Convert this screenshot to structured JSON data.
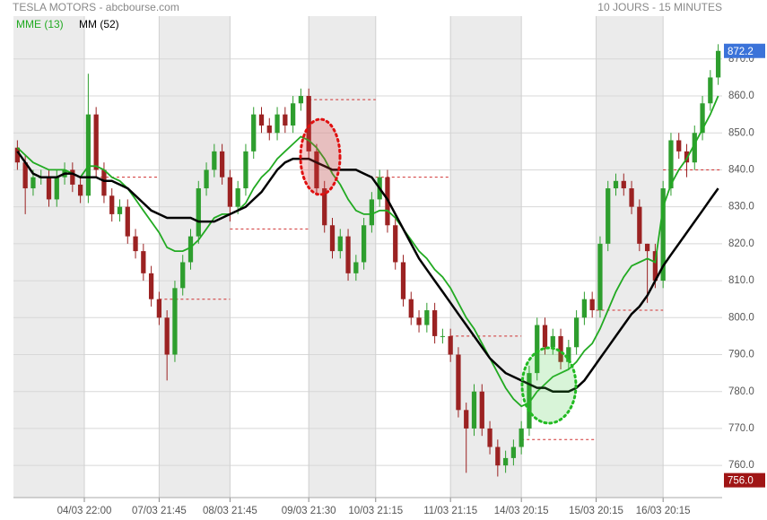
{
  "chart_data": {
    "type": "candlestick",
    "title": "TESLA MOTORS - abcbourse.com",
    "subtitle": "10 JOURS - 15 MINUTES",
    "up_color": "#2e9e2e",
    "down_color": "#9b2222",
    "open": [
      846,
      842,
      835,
      838,
      838,
      832,
      838,
      840,
      836,
      833,
      855,
      840,
      833,
      828,
      830,
      822,
      818,
      812,
      805,
      800,
      790,
      808,
      815,
      822,
      835,
      840,
      845,
      838,
      830,
      835,
      845,
      855,
      852,
      850,
      855,
      852,
      858,
      860,
      845,
      835,
      825,
      818,
      822,
      812,
      815,
      825,
      832,
      838,
      825,
      815,
      805,
      800,
      798,
      802,
      795,
      795,
      790,
      775,
      770,
      780,
      770,
      765,
      760,
      762,
      765,
      770,
      785,
      798,
      792,
      795,
      788,
      792,
      800,
      805,
      802,
      820,
      835,
      837,
      835,
      830,
      820,
      818,
      810,
      835,
      848,
      845,
      842,
      850,
      858,
      865
    ],
    "high": [
      848,
      844,
      840,
      840,
      840,
      840,
      842,
      842,
      838,
      866,
      857,
      842,
      835,
      832,
      832,
      824,
      820,
      814,
      807,
      802,
      810,
      817,
      824,
      837,
      842,
      847,
      847,
      840,
      837,
      847,
      857,
      857,
      854,
      857,
      857,
      860,
      862,
      862,
      847,
      837,
      827,
      824,
      824,
      817,
      827,
      834,
      840,
      840,
      827,
      817,
      807,
      802,
      804,
      804,
      797,
      797,
      792,
      777,
      782,
      782,
      772,
      767,
      764,
      767,
      772,
      787,
      800,
      800,
      797,
      797,
      794,
      802,
      807,
      807,
      822,
      837,
      839,
      839,
      837,
      832,
      820,
      820,
      837,
      850,
      850,
      847,
      852,
      860,
      867,
      874
    ],
    "low": [
      840,
      828,
      833,
      836,
      830,
      830,
      836,
      834,
      831,
      831,
      838,
      831,
      826,
      826,
      820,
      816,
      810,
      803,
      798,
      783,
      788,
      806,
      813,
      820,
      833,
      838,
      836,
      826,
      828,
      833,
      843,
      850,
      848,
      848,
      850,
      850,
      856,
      843,
      833,
      823,
      816,
      816,
      810,
      810,
      813,
      823,
      830,
      823,
      813,
      803,
      798,
      796,
      796,
      793,
      793,
      788,
      773,
      758,
      768,
      768,
      763,
      757,
      758,
      760,
      763,
      768,
      783,
      790,
      790,
      786,
      786,
      790,
      798,
      800,
      800,
      818,
      833,
      833,
      828,
      818,
      804,
      808,
      808,
      833,
      843,
      838,
      840,
      848,
      856,
      863
    ],
    "close": [
      842,
      835,
      838,
      838,
      832,
      838,
      840,
      836,
      833,
      855,
      840,
      833,
      828,
      830,
      822,
      818,
      812,
      805,
      800,
      790,
      808,
      815,
      822,
      835,
      840,
      845,
      838,
      830,
      835,
      845,
      855,
      852,
      850,
      855,
      852,
      858,
      860,
      845,
      835,
      825,
      818,
      822,
      812,
      815,
      825,
      832,
      838,
      825,
      815,
      805,
      800,
      798,
      802,
      795,
      795,
      790,
      775,
      770,
      780,
      770,
      765,
      760,
      762,
      765,
      770,
      785,
      798,
      792,
      795,
      788,
      792,
      800,
      805,
      802,
      820,
      835,
      837,
      835,
      830,
      820,
      818,
      810,
      835,
      848,
      845,
      842,
      850,
      858,
      865,
      872.2
    ],
    "series": [
      {
        "name": "MME (13)",
        "color": "#22aa22",
        "values": [
          846,
          844,
          842,
          841,
          840,
          840,
          840,
          839,
          838,
          841,
          841,
          840,
          838,
          837,
          835,
          832,
          829,
          826,
          823,
          819,
          818,
          818,
          819,
          821,
          824,
          827,
          828,
          828,
          829,
          831,
          835,
          838,
          840,
          843,
          845,
          847,
          849,
          848,
          846,
          843,
          839,
          836,
          832,
          829,
          828,
          828,
          829,
          829,
          827,
          824,
          821,
          818,
          816,
          813,
          811,
          808,
          804,
          800,
          797,
          793,
          789,
          785,
          781,
          778,
          776,
          777,
          780,
          782,
          784,
          785,
          786,
          788,
          791,
          793,
          797,
          802,
          807,
          811,
          814,
          815,
          816,
          815,
          830,
          836,
          840,
          843,
          847,
          851,
          855,
          860
        ]
      },
      {
        "name": "MM (52)",
        "color": "#000000",
        "values": [
          845,
          842,
          839,
          838,
          838,
          838,
          839,
          839,
          838,
          838,
          838,
          837,
          837,
          836,
          835,
          833,
          831,
          829,
          828,
          827,
          827,
          827,
          827,
          826,
          826,
          826,
          827,
          828,
          829,
          830,
          832,
          834,
          837,
          840,
          842,
          843,
          843,
          843,
          842,
          841,
          840,
          840,
          840,
          840,
          839,
          838,
          835,
          832,
          828,
          824,
          820,
          816,
          813,
          810,
          807,
          804,
          801,
          798,
          795,
          792,
          789,
          787,
          785,
          784,
          783,
          782,
          781,
          781,
          780,
          780,
          780,
          781,
          783,
          786,
          789,
          792,
          795,
          798,
          801,
          803,
          806,
          810,
          814,
          817,
          820,
          823,
          826,
          829,
          832,
          835
        ]
      }
    ],
    "reference_lines": [
      838,
      805,
      824,
      859,
      838,
      795,
      767,
      802,
      840
    ],
    "price_tags": [
      {
        "value": 872.2,
        "label": "872.2",
        "color": "#3b73d9"
      },
      {
        "value": 756.0,
        "label": "756.0",
        "color": "#a01515"
      }
    ],
    "xlim": [
      0,
      90
    ],
    "xticks": [
      {
        "value": 9,
        "label": "04/03 22:00"
      },
      {
        "value": 18.5,
        "label": "07/03 21:45"
      },
      {
        "value": 27.5,
        "label": "08/03 21:45"
      },
      {
        "value": 37.5,
        "label": "09/03 21:30"
      },
      {
        "value": 46,
        "label": "10/03 21:15"
      },
      {
        "value": 55.5,
        "label": "11/03 21:15"
      },
      {
        "value": 64.5,
        "label": "14/03 20:15"
      },
      {
        "value": 74,
        "label": "15/03 20:15"
      },
      {
        "value": 82.5,
        "label": "16/03 20:15"
      }
    ],
    "ylim": [
      751.3,
      881.6
    ],
    "yticks": [
      {
        "value": 760,
        "label": "760.0"
      },
      {
        "value": 770,
        "label": "770.0"
      },
      {
        "value": 780,
        "label": "780.0"
      },
      {
        "value": 790,
        "label": "790.0"
      },
      {
        "value": 800,
        "label": "800.0"
      },
      {
        "value": 810,
        "label": "810.0"
      },
      {
        "value": 820,
        "label": "820.0"
      },
      {
        "value": 830,
        "label": "830.0"
      },
      {
        "value": 840,
        "label": "840.0"
      },
      {
        "value": 850,
        "label": "850.0"
      },
      {
        "value": 860,
        "label": "860.0"
      },
      {
        "value": 870,
        "label": "870.0"
      }
    ],
    "grid": true
  }
}
